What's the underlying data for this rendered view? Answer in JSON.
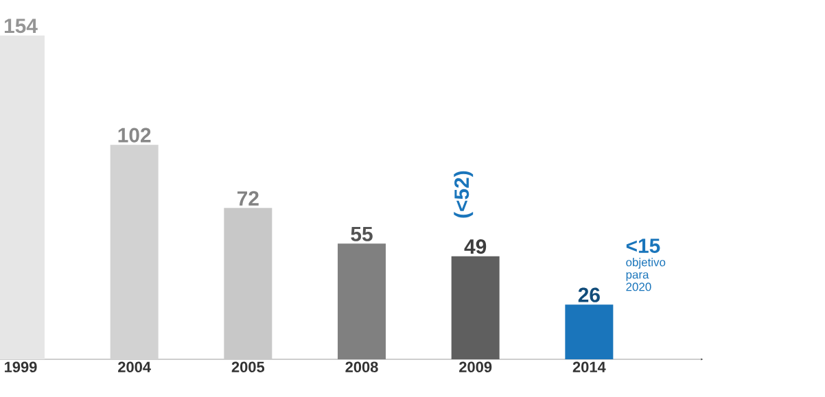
{
  "chart_data": {
    "type": "bar",
    "categories": [
      "1999",
      "2004",
      "2005",
      "2008",
      "2009",
      "2014"
    ],
    "values": [
      154,
      102,
      72,
      55,
      49,
      26
    ],
    "colors": [
      "#e6e6e6",
      "#d2d2d2",
      "#c8c8c8",
      "#808080",
      "#5f5f5f",
      "#1a75bb"
    ],
    "data_labels": true,
    "annotations": [
      "(<52)",
      "<15",
      "objetivo para 2020"
    ],
    "grid": false
  }
}
